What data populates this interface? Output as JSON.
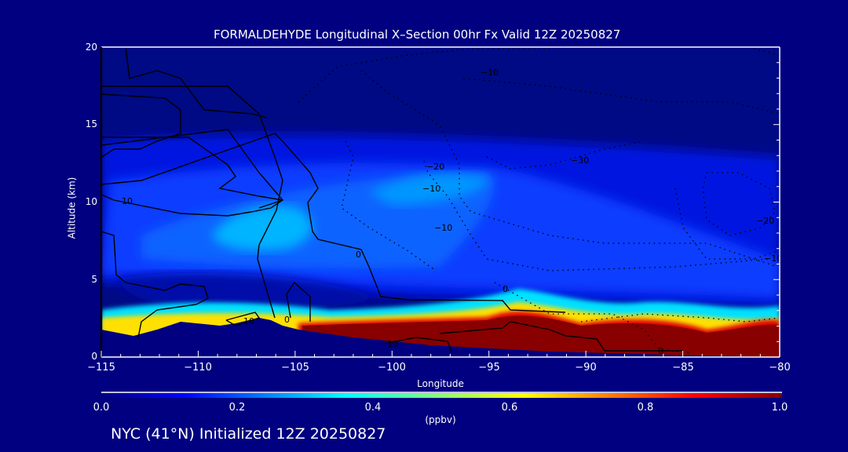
{
  "chart_data": {
    "type": "heatmap",
    "title": "FORMALDEHYDE Longitudinal X–Section 00hr  Fx Valid 12Z 20250827",
    "xlabel": "Longitude",
    "ylabel": "Altitude (km)",
    "xlim": [
      -115,
      -80
    ],
    "ylim": [
      0,
      20
    ],
    "x_ticks": [
      "−115",
      "−110",
      "−105",
      "−100",
      "−95",
      "−90",
      "−85",
      "−80"
    ],
    "y_ticks": [
      "0",
      "5",
      "10",
      "15",
      "20"
    ],
    "colorbar": {
      "label": "(ppbv)",
      "range": [
        0.0,
        1.0
      ],
      "ticks": [
        "0.0",
        "0.2",
        "0.4",
        "0.6",
        "0.8",
        "1.0"
      ],
      "colors": [
        "#000080",
        "#0000ff",
        "#00ffff",
        "#ffff00",
        "#ff0000",
        "#800000"
      ]
    },
    "contour_labels": [
      "10",
      "0",
      "10",
      "−20",
      "−10",
      "0",
      "10",
      "−30",
      "−10",
      "0",
      "−20",
      "−10",
      "−10",
      "0"
    ],
    "field_description_values": {
      "surface_layer_max_ppbv": 1.0,
      "upper_cyan_max_ppbv": 0.38
    }
  },
  "footer": "NYC (41°N) Initialized 12Z 20250827"
}
